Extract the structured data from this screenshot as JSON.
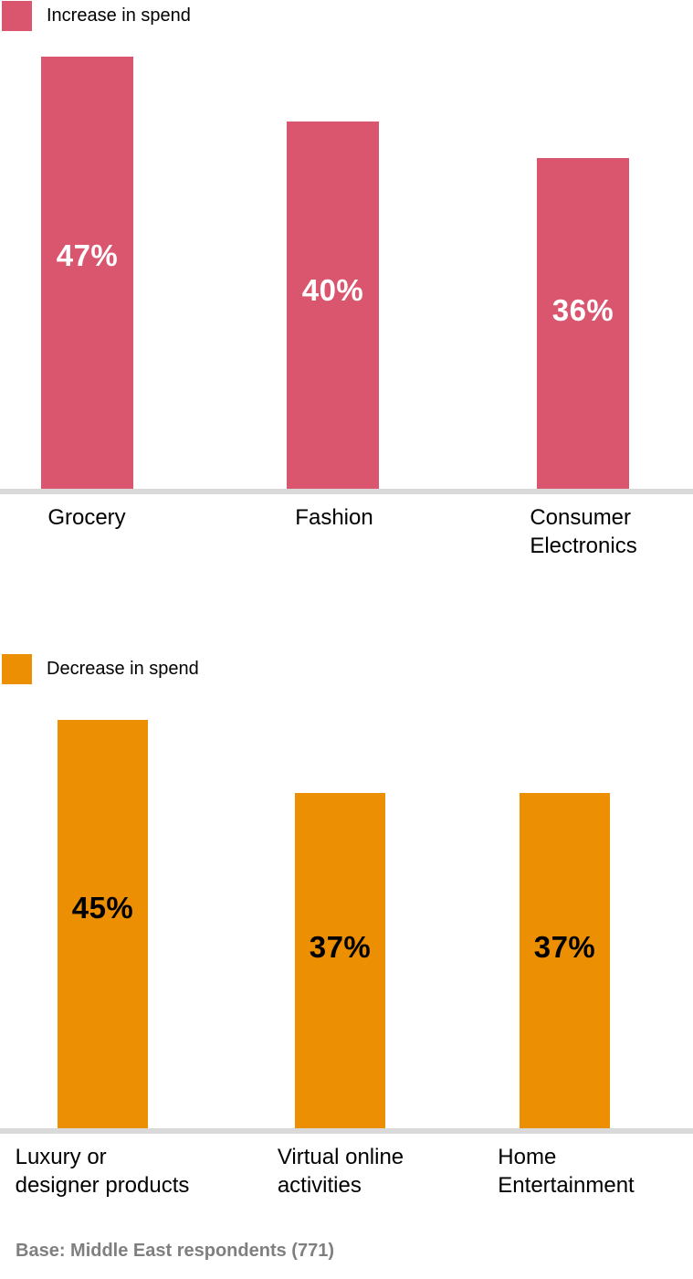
{
  "charts": [
    {
      "legend_label": "Increase in spend",
      "color": "#D9566E",
      "bars": [
        {
          "category": "Grocery",
          "value": 47,
          "label": "47%"
        },
        {
          "category": "Fashion",
          "value": 40,
          "label": "40%"
        },
        {
          "category": "Consumer\nElectronics",
          "value": 36,
          "label": "36%"
        }
      ]
    },
    {
      "legend_label": "Decrease in spend",
      "color": "#EC8F02",
      "bars": [
        {
          "category": "Luxury or\ndesigner products",
          "value": 45,
          "label": "45%"
        },
        {
          "category": "Virtual online\nactivities",
          "value": 37,
          "label": "37%"
        },
        {
          "category": "Home\nEntertainment",
          "value": 37,
          "label": "37%"
        }
      ]
    }
  ],
  "footer": {
    "text": "Base: Middle East respondents (771)"
  },
  "colors": {
    "increase_bar": "#D9566E",
    "decrease_bar": "#EC8F02",
    "axis_band": "#D9D9D9",
    "footer_text": "#7F7F7F"
  },
  "chart_data": [
    {
      "type": "bar",
      "title": "Increase in spend",
      "categories": [
        "Grocery",
        "Fashion",
        "Consumer Electronics"
      ],
      "values": [
        47,
        40,
        36
      ],
      "value_labels": [
        "47%",
        "40%",
        "36%"
      ],
      "unit": "%",
      "bar_color": "#D9566E",
      "xlabel": "",
      "ylabel": "",
      "ylim": [
        0,
        50
      ],
      "grid": false,
      "legend_position": "top-left"
    },
    {
      "type": "bar",
      "title": "Decrease in spend",
      "categories": [
        "Luxury or designer products",
        "Virtual online activities",
        "Home Entertainment"
      ],
      "values": [
        45,
        37,
        37
      ],
      "value_labels": [
        "45%",
        "37%",
        "37%"
      ],
      "unit": "%",
      "bar_color": "#EC8F02",
      "xlabel": "",
      "ylabel": "",
      "ylim": [
        0,
        50
      ],
      "grid": false,
      "legend_position": "top-left"
    }
  ]
}
